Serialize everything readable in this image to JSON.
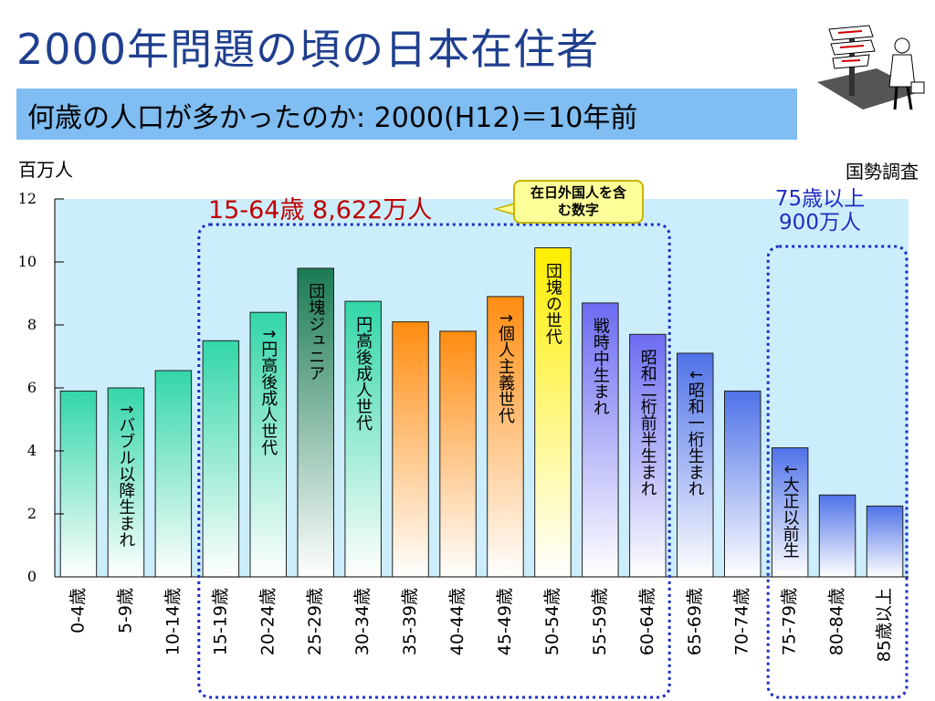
{
  "title": "2000年問題の頃の日本在住者",
  "subtitle": "何歳の人口が多かったのか: 2000(H12)＝10年前",
  "unit_left": "百万人",
  "source_label": "国勢調査",
  "callout_note": [
    "在日外国人を含",
    "む数字"
  ],
  "annotation_working_age": "15-64歳 8,622万人",
  "annotation_elderly": [
    "75歳以上",
    "900万人"
  ],
  "chart_data": {
    "type": "bar",
    "title": "",
    "xlabel": "",
    "ylabel": "百万人",
    "ylim": [
      0,
      12
    ],
    "yticks": [
      0,
      2,
      4,
      6,
      8,
      10,
      12
    ],
    "categories": [
      "0-4歳",
      "5-9歳",
      "10-14歳",
      "15-19歳",
      "20-24歳",
      "25-29歳",
      "30-34歳",
      "35-39歳",
      "40-44歳",
      "45-49歳",
      "50-54歳",
      "55-59歳",
      "60-64歳",
      "65-69歳",
      "70-74歳",
      "75-79歳",
      "80-84歳",
      "85歳以上"
    ],
    "values": [
      5.9,
      6.0,
      6.55,
      7.5,
      8.4,
      9.8,
      8.75,
      8.1,
      7.8,
      8.9,
      10.45,
      8.7,
      7.7,
      7.1,
      5.9,
      4.1,
      2.6,
      2.25
    ],
    "bar_labels": [
      "",
      "↑バブル以降生まれ",
      "",
      "",
      "↑円高後成人世代",
      "団塊ジュニア",
      "円高後成人世代",
      "",
      "",
      "↑個人主義世代",
      "団塊の世代",
      "戦時中生まれ",
      "昭和二桁前半生まれ",
      "↓昭和一桁生まれ",
      "",
      "↓大正以前生",
      "",
      ""
    ],
    "bar_colors": [
      "#33d6a8",
      "#33d6a8",
      "#33d6a8",
      "#33d6a8",
      "#33d6a8",
      "#1a7a52",
      "#33d6a8",
      "#ff8c10",
      "#ff8c10",
      "#ff8c10",
      "#ffee00",
      "#6c6cf2",
      "#6c6cf2",
      "#4f72e8",
      "#4f72e8",
      "#4f72e8",
      "#4f72e8",
      "#4f72e8"
    ],
    "bar_label_boxes": [
      "white",
      "white",
      "white",
      "white",
      "white",
      "white",
      "white",
      "white",
      "white",
      "white",
      "white",
      "white",
      "white",
      "white",
      "white",
      "white",
      "white",
      "white"
    ],
    "grid": false,
    "highlight_groups": [
      {
        "name": "15-64歳",
        "from": "15-19歳",
        "to": "60-64歳"
      },
      {
        "name": "75歳以上",
        "from": "75-79歳",
        "to": "85歳以上"
      }
    ],
    "plot_background": "#cceefc"
  }
}
